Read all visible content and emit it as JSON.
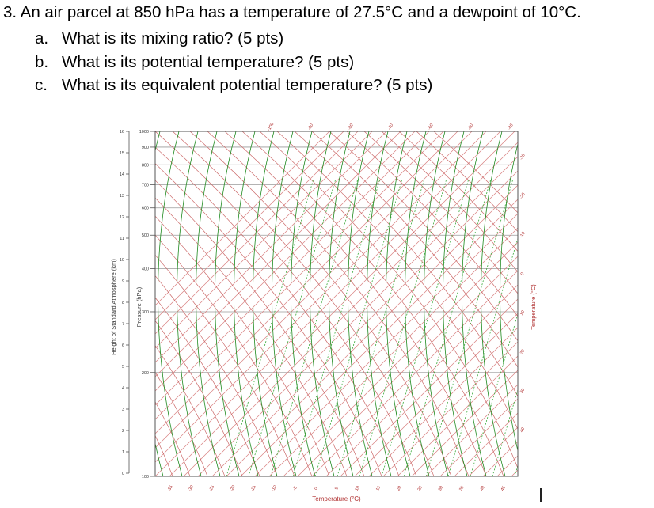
{
  "question": {
    "prompt": "3. An air parcel at 850 hPa has a temperature of 27.5°C and a dewpoint of 10°C.",
    "parts": [
      {
        "letter": "a.",
        "text": "What is its mixing ratio? (5 pts)"
      },
      {
        "letter": "b.",
        "text": "What is its potential temperature? (5 pts)"
      },
      {
        "letter": "c.",
        "text": "What is its equivalent potential temperature? (5 pts)"
      }
    ]
  },
  "chart": {
    "x_axis_label": "Temperature (°C)",
    "left_axis_label": "Pressure (hPa)",
    "far_left_axis_label": "Height of Standard Atmosphere (km)",
    "right_axis_label": "Temperature (°C)",
    "pressure_ticks": [
      "100",
      "200",
      "300",
      "400",
      "500",
      "600",
      "700",
      "800",
      "900",
      "1000"
    ],
    "height_ticks": [
      "0",
      "1",
      "2",
      "3",
      "4",
      "5",
      "6",
      "7",
      "8",
      "9",
      "10",
      "11",
      "12",
      "13",
      "14",
      "15",
      "16"
    ],
    "bottom_ticks": [
      "-35",
      "-30",
      "-25",
      "-20",
      "-15",
      "-10",
      "-5",
      "0",
      "5",
      "10",
      "15",
      "20",
      "25",
      "30",
      "35",
      "40",
      "45"
    ],
    "top_ticks": [
      "-100",
      "-90",
      "-80",
      "-70",
      "-60",
      "-50",
      "-40"
    ],
    "right_ticks": [
      "-30",
      "-20",
      "-10",
      "0",
      "10",
      "20",
      "30",
      "40"
    ],
    "colors": {
      "isotherm": "#d98080",
      "dry_adiabat": "#cc6a6a",
      "moist_adiabat": "#1f8a1f",
      "mixing_ratio": "#3aaa3a",
      "isobar": "#9a9a9a",
      "frame": "#555555"
    }
  }
}
